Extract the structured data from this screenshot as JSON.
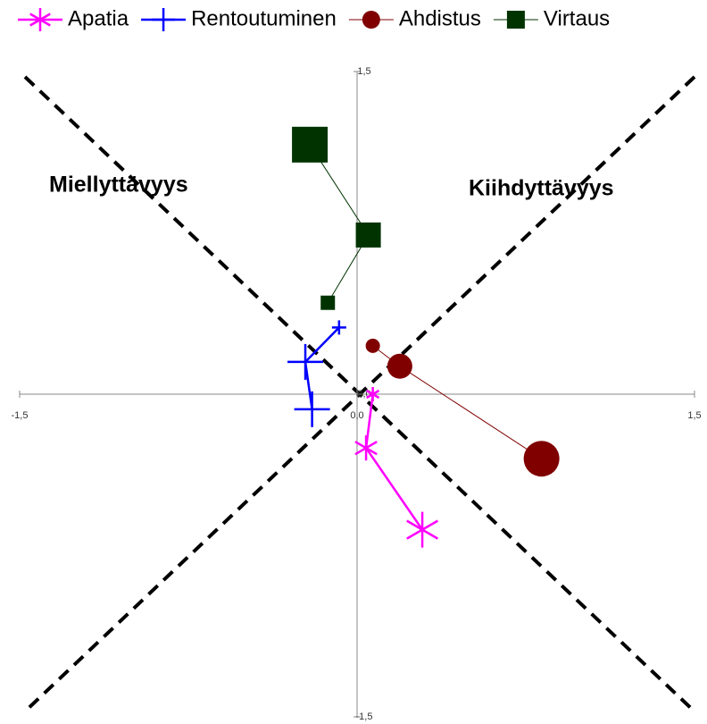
{
  "chart_data": {
    "type": "scatter",
    "annotations": [
      "Miellyttävyys",
      "Kiihdyttävyys"
    ],
    "xlim": [
      -1.5,
      1.5
    ],
    "ylim": [
      -1.5,
      1.5
    ],
    "xticks": [
      {
        "value": -1.5,
        "label": "-1,5"
      },
      {
        "value": 0,
        "label": "0,0"
      },
      {
        "value": 1.5,
        "label": "1,5"
      }
    ],
    "yticks": [
      {
        "value": -1.5,
        "label": "-1,5"
      },
      {
        "value": 0,
        "label": "0,0"
      },
      {
        "value": 1.5,
        "label": "1,5"
      }
    ],
    "legend": "top",
    "series": [
      {
        "name": "Apatia",
        "color": "#ff00ff",
        "marker": "asterisk",
        "x": [
          0.07,
          0.04,
          0.29
        ],
        "values": [
          0.0,
          -0.25,
          -0.63
        ],
        "sizes": [
          1,
          2,
          3
        ]
      },
      {
        "name": "Rentoutuminen",
        "color": "#0000ff",
        "marker": "plus",
        "x": [
          -0.08,
          -0.23,
          -0.2
        ],
        "values": [
          0.31,
          0.15,
          -0.07
        ],
        "sizes": [
          1,
          3,
          3
        ]
      },
      {
        "name": "Ahdistus",
        "color": "#800000",
        "marker": "circle",
        "x": [
          0.07,
          0.19,
          0.82
        ],
        "values": [
          0.225,
          0.13,
          -0.3
        ],
        "sizes": [
          1,
          2,
          3
        ]
      },
      {
        "name": "Virtaus",
        "color": "#003300",
        "marker": "square",
        "x": [
          -0.13,
          0.05,
          -0.21
        ],
        "values": [
          0.425,
          0.74,
          1.16
        ],
        "sizes": [
          1,
          2,
          3
        ]
      }
    ]
  }
}
